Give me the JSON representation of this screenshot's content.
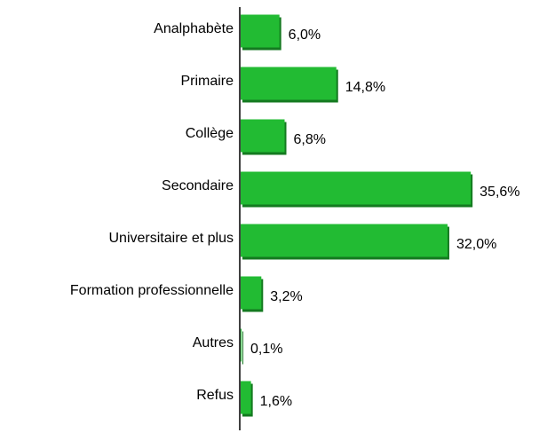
{
  "chart_data": {
    "type": "bar",
    "orientation": "horizontal",
    "categories": [
      "Analphabète",
      "Primaire",
      "Collège",
      "Secondaire",
      "Universitaire et plus",
      "Formation professionnelle",
      "Autres",
      "Refus"
    ],
    "values": [
      6.0,
      14.8,
      6.8,
      35.6,
      32.0,
      3.2,
      0.1,
      1.6
    ],
    "value_labels": [
      "6,0%",
      "14,8%",
      "6,8%",
      "35,6%",
      "32,0%",
      "3,2%",
      "0,1%",
      "1,6%"
    ],
    "color": "#22bb33"
  }
}
